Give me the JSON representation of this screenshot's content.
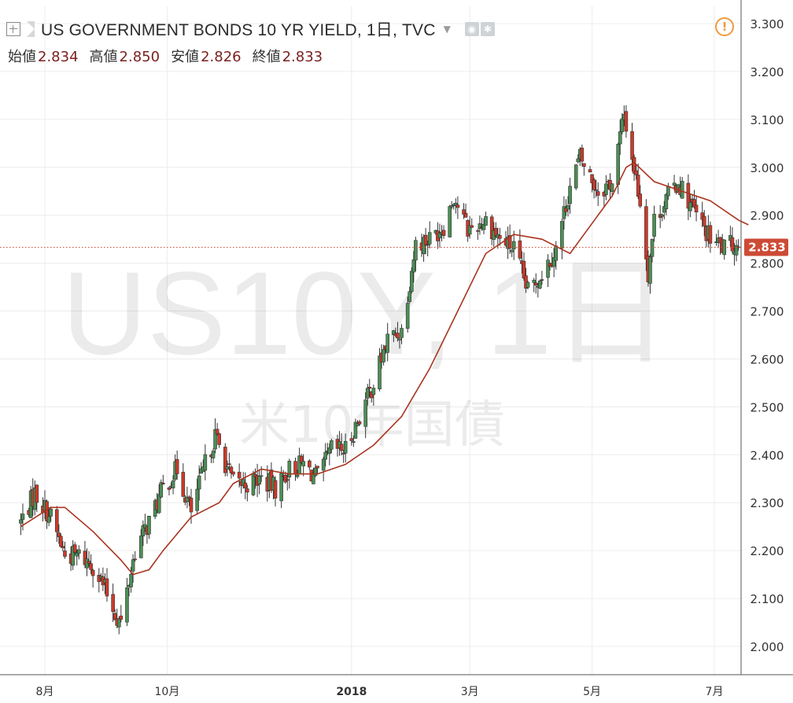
{
  "header": {
    "title": "US GOVERNMENT BONDS 10 YR YIELD, 1日, TVC",
    "ohlc": [
      {
        "label": "始値",
        "value": "2.834"
      },
      {
        "label": "高値",
        "value": "2.850"
      },
      {
        "label": "安値",
        "value": "2.826"
      },
      {
        "label": "終値",
        "value": "2.833"
      }
    ],
    "icons": [
      "add-compare-icon",
      "symbol-flag-icon",
      "dropdown-caret-icon",
      "eye-icon",
      "settings-icon",
      "warning-icon"
    ]
  },
  "watermark": {
    "symbol": "US10Y, 1日",
    "name": "米10年国債"
  },
  "colors": {
    "up": "#4c8f55",
    "down": "#cc3a2a",
    "ma": "#a9341f",
    "grid": "#ececec",
    "price_tag": "#cd4b35"
  },
  "chart_data": {
    "type": "candlestick",
    "ylim": [
      1.95,
      3.33
    ],
    "yticks": [
      "3.300",
      "3.200",
      "3.100",
      "3.000",
      "2.900",
      "2.800",
      "2.700",
      "2.600",
      "2.500",
      "2.400",
      "2.300",
      "2.200",
      "2.100",
      "2.000"
    ],
    "xticks": [
      "8月",
      "10月",
      "2018",
      "3月",
      "5月",
      "7月"
    ],
    "last_price": "2.833",
    "close_path": [
      [
        "2017-07-20",
        2.26
      ],
      [
        "2017-07-27",
        2.32
      ],
      [
        "2017-08-04",
        2.27
      ],
      [
        "2017-08-11",
        2.19
      ],
      [
        "2017-08-18",
        2.19
      ],
      [
        "2017-08-25",
        2.17
      ],
      [
        "2017-08-31",
        2.12
      ],
      [
        "2017-09-06",
        2.06
      ],
      [
        "2017-09-08",
        2.05
      ],
      [
        "2017-09-15",
        2.2
      ],
      [
        "2017-09-22",
        2.26
      ],
      [
        "2017-09-29",
        2.33
      ],
      [
        "2017-10-06",
        2.37
      ],
      [
        "2017-10-13",
        2.28
      ],
      [
        "2017-10-20",
        2.38
      ],
      [
        "2017-10-25",
        2.44
      ],
      [
        "2017-11-03",
        2.34
      ],
      [
        "2017-11-10",
        2.34
      ],
      [
        "2017-11-17",
        2.35
      ],
      [
        "2017-11-24",
        2.33
      ],
      [
        "2017-12-01",
        2.37
      ],
      [
        "2017-12-08",
        2.38
      ],
      [
        "2017-12-15",
        2.35
      ],
      [
        "2017-12-22",
        2.41
      ],
      [
        "2017-12-29",
        2.41
      ],
      [
        "2018-01-05",
        2.48
      ],
      [
        "2018-01-12",
        2.55
      ],
      [
        "2018-01-19",
        2.64
      ],
      [
        "2018-01-26",
        2.66
      ],
      [
        "2018-02-02",
        2.84
      ],
      [
        "2018-02-09",
        2.85
      ],
      [
        "2018-02-16",
        2.88
      ],
      [
        "2018-02-21",
        2.94
      ],
      [
        "2018-02-28",
        2.87
      ],
      [
        "2018-03-09",
        2.89
      ],
      [
        "2018-03-16",
        2.85
      ],
      [
        "2018-03-23",
        2.83
      ],
      [
        "2018-03-30",
        2.74
      ],
      [
        "2018-04-06",
        2.78
      ],
      [
        "2018-04-13",
        2.83
      ],
      [
        "2018-04-20",
        2.96
      ],
      [
        "2018-04-25",
        3.02
      ],
      [
        "2018-05-04",
        2.95
      ],
      [
        "2018-05-11",
        2.97
      ],
      [
        "2018-05-17",
        3.11
      ],
      [
        "2018-05-25",
        2.93
      ],
      [
        "2018-05-29",
        2.78
      ],
      [
        "2018-06-01",
        2.89
      ],
      [
        "2018-06-08",
        2.94
      ],
      [
        "2018-06-13",
        2.97
      ],
      [
        "2018-06-22",
        2.9
      ],
      [
        "2018-06-29",
        2.85
      ],
      [
        "2018-07-06",
        2.83
      ],
      [
        "2018-07-11",
        2.84
      ],
      [
        "2018-07-13",
        2.833
      ]
    ],
    "ma_path": [
      [
        "2017-07-20",
        2.25
      ],
      [
        "2017-08-04",
        2.29
      ],
      [
        "2017-08-11",
        2.29
      ],
      [
        "2017-08-25",
        2.24
      ],
      [
        "2017-09-08",
        2.18
      ],
      [
        "2017-09-14",
        2.15
      ],
      [
        "2017-09-22",
        2.16
      ],
      [
        "2017-09-29",
        2.2
      ],
      [
        "2017-10-13",
        2.27
      ],
      [
        "2017-10-27",
        2.3
      ],
      [
        "2017-11-03",
        2.34
      ],
      [
        "2017-11-17",
        2.37
      ],
      [
        "2017-12-01",
        2.36
      ],
      [
        "2017-12-15",
        2.36
      ],
      [
        "2017-12-29",
        2.38
      ],
      [
        "2018-01-12",
        2.42
      ],
      [
        "2018-01-26",
        2.48
      ],
      [
        "2018-02-09",
        2.58
      ],
      [
        "2018-02-23",
        2.7
      ],
      [
        "2018-03-09",
        2.82
      ],
      [
        "2018-03-23",
        2.86
      ],
      [
        "2018-04-06",
        2.85
      ],
      [
        "2018-04-20",
        2.82
      ],
      [
        "2018-05-04",
        2.9
      ],
      [
        "2018-05-11",
        2.94
      ],
      [
        "2018-05-18",
        3.0
      ],
      [
        "2018-05-22",
        3.01
      ],
      [
        "2018-06-01",
        2.97
      ],
      [
        "2018-06-15",
        2.95
      ],
      [
        "2018-06-29",
        2.93
      ],
      [
        "2018-07-13",
        2.89
      ],
      [
        "2018-07-18",
        2.88
      ]
    ]
  }
}
